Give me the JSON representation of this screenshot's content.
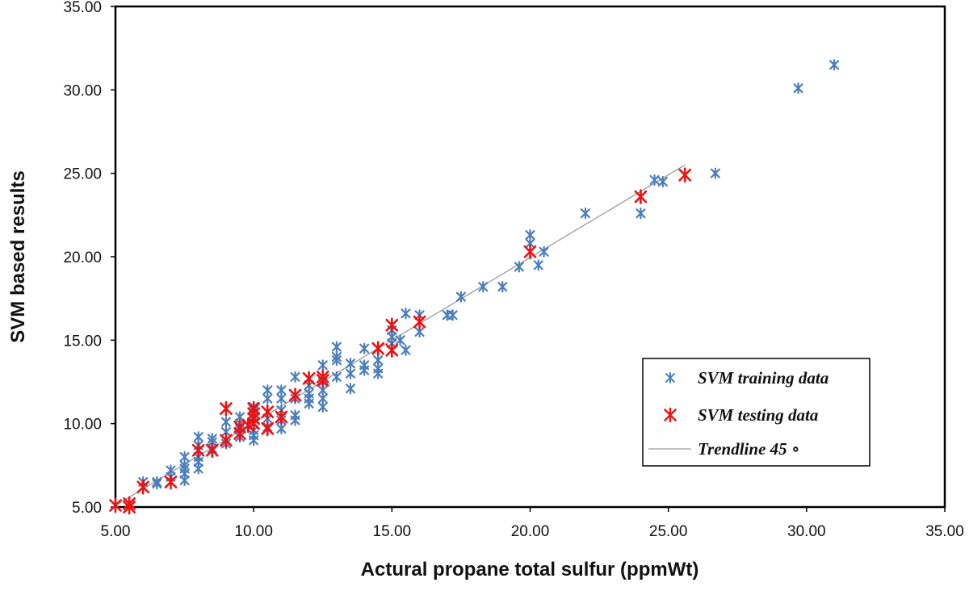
{
  "chart_data": {
    "type": "scatter",
    "title": "",
    "xlabel": "Actural  propane total sulfur (ppmWt)",
    "ylabel": "SVM based results",
    "xlim": [
      5,
      35
    ],
    "ylim": [
      5,
      35
    ],
    "x_ticks": [
      "5.00",
      "10.00",
      "15.00",
      "20.00",
      "25.00",
      "30.00",
      "35.00"
    ],
    "y_ticks": [
      "5.00",
      "10.00",
      "15.00",
      "20.00",
      "25.00",
      "30.00",
      "35.00"
    ],
    "legend": [
      {
        "name": "SVM training data",
        "color": "#4a7ebb",
        "marker": "star"
      },
      {
        "name": "SVM testing data",
        "color": "#ee1111",
        "marker": "star"
      },
      {
        "name": "Trendline 45 ∘",
        "color": "#9a9a9a",
        "marker": "line"
      }
    ],
    "series": [
      {
        "name": "SVM training data",
        "color": "#4a7ebb",
        "points": [
          [
            6,
            6.5
          ],
          [
            6.5,
            6.5
          ],
          [
            6.5,
            6.4
          ],
          [
            7,
            7.2
          ],
          [
            7,
            6.8
          ],
          [
            7.5,
            7
          ],
          [
            7.5,
            7.5
          ],
          [
            7.5,
            6.6
          ],
          [
            7.5,
            8
          ],
          [
            7.5,
            7.3
          ],
          [
            8,
            9.2
          ],
          [
            8,
            8.7
          ],
          [
            8,
            8
          ],
          [
            8,
            7.7
          ],
          [
            8,
            7.3
          ],
          [
            8.5,
            8.9
          ],
          [
            8.5,
            8.5
          ],
          [
            8.5,
            9.1
          ],
          [
            9,
            10.1
          ],
          [
            9,
            9.5
          ],
          [
            9,
            9
          ],
          [
            9,
            8.8
          ],
          [
            9.5,
            9.7
          ],
          [
            9.5,
            10.4
          ],
          [
            9.5,
            9.2
          ],
          [
            9.5,
            10
          ],
          [
            10,
            9.6
          ],
          [
            10,
            10.4
          ],
          [
            10,
            11
          ],
          [
            10,
            9
          ],
          [
            10,
            9.3
          ],
          [
            10,
            10.8
          ],
          [
            10.5,
            12
          ],
          [
            10.5,
            11.5
          ],
          [
            10.5,
            9.8
          ],
          [
            10.5,
            10.3
          ],
          [
            11,
            12
          ],
          [
            11,
            11.5
          ],
          [
            11,
            10.8
          ],
          [
            11,
            10.2
          ],
          [
            11,
            9.7
          ],
          [
            11.5,
            12.8
          ],
          [
            11.5,
            11.5
          ],
          [
            11.5,
            10.5
          ],
          [
            11.5,
            10.2
          ],
          [
            12,
            12.3
          ],
          [
            12,
            11.8
          ],
          [
            12,
            11.5
          ],
          [
            12,
            11.2
          ],
          [
            12.5,
            12.5
          ],
          [
            12.5,
            12
          ],
          [
            12.5,
            11.5
          ],
          [
            12.5,
            11
          ],
          [
            12.5,
            13.5
          ],
          [
            13,
            14.6
          ],
          [
            13,
            14
          ],
          [
            13,
            13.8
          ],
          [
            13,
            12.8
          ],
          [
            13.5,
            13.6
          ],
          [
            13.5,
            13
          ],
          [
            13.5,
            12.1
          ],
          [
            14,
            14.5
          ],
          [
            14,
            13.5
          ],
          [
            14,
            13.2
          ],
          [
            14.5,
            13.8
          ],
          [
            14.5,
            13.3
          ],
          [
            14.5,
            13
          ],
          [
            15,
            15.2
          ],
          [
            15,
            14.8
          ],
          [
            15,
            15.6
          ],
          [
            15.3,
            15
          ],
          [
            15.5,
            14.4
          ],
          [
            15.5,
            16.6
          ],
          [
            16,
            16.5
          ],
          [
            16,
            15.5
          ],
          [
            17,
            16.5
          ],
          [
            17.2,
            16.5
          ],
          [
            17.5,
            17.6
          ],
          [
            18.3,
            18.2
          ],
          [
            19,
            18.2
          ],
          [
            19.6,
            19.4
          ],
          [
            20,
            21.3
          ],
          [
            20,
            20.8
          ],
          [
            20.3,
            19.5
          ],
          [
            20.5,
            20.3
          ],
          [
            22,
            22.6
          ],
          [
            24,
            22.6
          ],
          [
            24.5,
            24.6
          ],
          [
            24.8,
            24.5
          ],
          [
            26.7,
            25
          ],
          [
            29.7,
            30.1
          ],
          [
            31,
            31.5
          ]
        ]
      },
      {
        "name": "SVM testing data",
        "color": "#ee1111",
        "points": [
          [
            5,
            5.1
          ],
          [
            5.5,
            5.2
          ],
          [
            5.5,
            5
          ],
          [
            6,
            6.2
          ],
          [
            7,
            6.5
          ],
          [
            8,
            8.4
          ],
          [
            8.5,
            8.4
          ],
          [
            9,
            9
          ],
          [
            9,
            10.9
          ],
          [
            9.5,
            9.8
          ],
          [
            9.5,
            9.4
          ],
          [
            9.8,
            9.9
          ],
          [
            10,
            10
          ],
          [
            10,
            10.6
          ],
          [
            10,
            10.9
          ],
          [
            10,
            10.3
          ],
          [
            10.5,
            9.7
          ],
          [
            10.5,
            10.7
          ],
          [
            11,
            10.4
          ],
          [
            11.5,
            11.7
          ],
          [
            12,
            12.7
          ],
          [
            12.5,
            12.8
          ],
          [
            12.5,
            12.6
          ],
          [
            14.5,
            14.5
          ],
          [
            15,
            15.9
          ],
          [
            15,
            14.4
          ],
          [
            16,
            16.1
          ],
          [
            20,
            20.3
          ],
          [
            24,
            23.6
          ],
          [
            25.6,
            24.9
          ]
        ]
      },
      {
        "name": "Trendline 45 ∘",
        "color": "#9a9a9a",
        "type": "line",
        "points": [
          [
            5,
            5.1
          ],
          [
            25.6,
            25.5
          ]
        ]
      }
    ]
  }
}
